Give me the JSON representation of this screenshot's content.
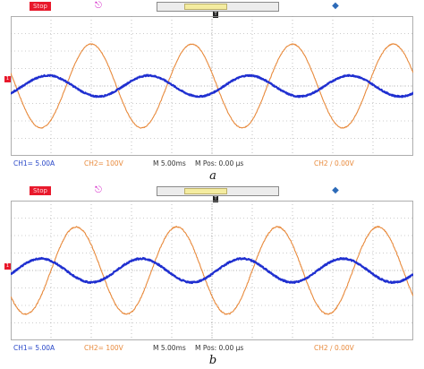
{
  "icons": {
    "trigger": "trigger-icon",
    "usb": "usb-icon",
    "trigger_position": "trigger-position-icon",
    "channel_marker": "channel-ground-icon"
  },
  "colors": {
    "ch1": "#1f2fd0",
    "ch2": "#e88a3c",
    "stop": "#e8192c",
    "grid": "#9a9a9a"
  },
  "chart_data": [
    {
      "type": "line",
      "panel_label": "a",
      "status_badge": "Stop",
      "trigger_position_label": "T",
      "channel_marker_label": "1",
      "readouts": {
        "ch1": "CH1= 5.00A",
        "ch2": "CH2= 100V",
        "timebase": "M 5.00ms",
        "mpos": "M Pos: 0.00 µs",
        "trigger": "CH2 ∕ 0.00V"
      },
      "grid": true,
      "x_divisions": 10,
      "y_divisions": 8,
      "xlim": [
        0,
        10
      ],
      "ylim": [
        -4,
        4
      ],
      "series": [
        {
          "channel": "CH2",
          "color": "#e88a3c",
          "amplitude": 2.4,
          "offset": 0.0,
          "period": 2.5,
          "phase": 0.55,
          "noise": 0.05,
          "stroke": 1.1
        },
        {
          "channel": "CH1",
          "color": "#1f2fd0",
          "amplitude": 0.6,
          "offset": 0.0,
          "period": 2.5,
          "phase": 0.12,
          "noise": 0.07,
          "stroke": 2.2
        }
      ]
    },
    {
      "type": "line",
      "panel_label": "b",
      "status_badge": "Stop",
      "trigger_position_label": "T",
      "channel_marker_label": "1",
      "readouts": {
        "ch1": "CH1= 5.00A",
        "ch2": "CH2= 100V",
        "timebase": "M 5.00ms",
        "mpos": "M Pos: 0.00 µs",
        "trigger": "CH2 ∕ 0.00V"
      },
      "grid": true,
      "x_divisions": 10,
      "y_divisions": 8,
      "xlim": [
        0,
        10
      ],
      "ylim": [
        -4,
        4
      ],
      "series": [
        {
          "channel": "CH2",
          "color": "#e88a3c",
          "amplitude": 2.5,
          "offset": 0.0,
          "period": 2.5,
          "phase": 0.4,
          "noise": 0.07,
          "stroke": 1.1
        },
        {
          "channel": "CH1",
          "color": "#1f2fd0",
          "amplitude": 0.68,
          "offset": 0.0,
          "period": 2.5,
          "phase": 0.05,
          "noise": 0.08,
          "stroke": 2.2
        }
      ]
    }
  ]
}
